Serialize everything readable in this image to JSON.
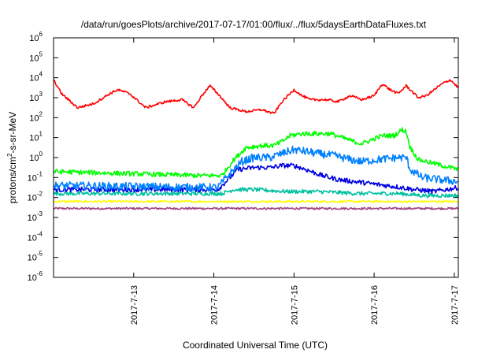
{
  "chart_data": {
    "type": "line",
    "title": "/data/run/goesPlots/archive/2017-07-17/01:00/flux/../flux/5daysEarthDataFluxes.txt",
    "xlabel": "Coordinated Universal Time (UTC)",
    "ylabel": "protons/cm²-s-sr-MeV",
    "ylabel_parts": {
      "pre": "protons/cm",
      "sup": "2",
      "post": "-s-sr-MeV"
    },
    "y_scale": "log",
    "ylim": [
      1e-06,
      1000000.0
    ],
    "xlim": [
      0,
      5.05
    ],
    "y_ticks": [
      {
        "value": -6,
        "base": "10",
        "exp": "-6"
      },
      {
        "value": -5,
        "base": "10",
        "exp": "-5"
      },
      {
        "value": -4,
        "base": "10",
        "exp": "-4"
      },
      {
        "value": -3,
        "base": "10",
        "exp": "-3"
      },
      {
        "value": -2,
        "base": "10",
        "exp": "-2"
      },
      {
        "value": -1,
        "base": "10",
        "exp": "-1"
      },
      {
        "value": 0,
        "base": "10",
        "exp": "0"
      },
      {
        "value": 1,
        "base": "10",
        "exp": "1"
      },
      {
        "value": 2,
        "base": "10",
        "exp": "2"
      },
      {
        "value": 3,
        "base": "10",
        "exp": "3"
      },
      {
        "value": 4,
        "base": "10",
        "exp": "4"
      },
      {
        "value": 5,
        "base": "10",
        "exp": "5"
      },
      {
        "value": 6,
        "base": "10",
        "exp": "6"
      }
    ],
    "x_ticks": [
      {
        "value": 1,
        "label": "2017-7-13"
      },
      {
        "value": 2,
        "label": "2017-7-14"
      },
      {
        "value": 3,
        "label": "2017-7-15"
      },
      {
        "value": 4,
        "label": "2017-7-16"
      },
      {
        "value": 5,
        "label": "2017-7-17"
      }
    ],
    "grid": false,
    "legend": "none",
    "series": [
      {
        "color": "#ff0000",
        "noise": 0.06,
        "points": [
          [
            0,
            3.9
          ],
          [
            0.1,
            3.2
          ],
          [
            0.3,
            2.5
          ],
          [
            0.5,
            2.7
          ],
          [
            0.7,
            3.2
          ],
          [
            0.8,
            3.4
          ],
          [
            0.95,
            3.2
          ],
          [
            1.15,
            2.5
          ],
          [
            1.4,
            2.8
          ],
          [
            1.6,
            2.9
          ],
          [
            1.75,
            2.5
          ],
          [
            1.85,
            3.1
          ],
          [
            1.95,
            3.6
          ],
          [
            2.05,
            3.2
          ],
          [
            2.2,
            2.5
          ],
          [
            2.4,
            2.3
          ],
          [
            2.6,
            2.4
          ],
          [
            2.75,
            2.2
          ],
          [
            2.85,
            2.8
          ],
          [
            3.0,
            3.4
          ],
          [
            3.1,
            3.1
          ],
          [
            3.2,
            2.9
          ],
          [
            3.4,
            2.9
          ],
          [
            3.55,
            2.8
          ],
          [
            3.7,
            3.1
          ],
          [
            3.85,
            2.9
          ],
          [
            4.0,
            3.1
          ],
          [
            4.1,
            3.7
          ],
          [
            4.2,
            3.4
          ],
          [
            4.3,
            3.2
          ],
          [
            4.4,
            3.6
          ],
          [
            4.55,
            3.0
          ],
          [
            4.65,
            3.1
          ],
          [
            4.85,
            3.7
          ],
          [
            4.95,
            3.9
          ],
          [
            5.05,
            3.5
          ]
        ]
      },
      {
        "color": "#00ff00",
        "noise": 0.12,
        "points": [
          [
            0,
            -0.7
          ],
          [
            1.8,
            -0.9
          ],
          [
            2.1,
            -0.9
          ],
          [
            2.25,
            -0.1
          ],
          [
            2.4,
            0.5
          ],
          [
            2.6,
            0.6
          ],
          [
            2.75,
            0.6
          ],
          [
            2.85,
            0.8
          ],
          [
            2.95,
            1.1
          ],
          [
            3.1,
            1.2
          ],
          [
            3.3,
            1.2
          ],
          [
            3.45,
            1.2
          ],
          [
            3.6,
            1.0
          ],
          [
            3.75,
            0.8
          ],
          [
            3.85,
            0.7
          ],
          [
            4.1,
            1.1
          ],
          [
            4.25,
            1.1
          ],
          [
            4.35,
            1.4
          ],
          [
            4.4,
            1.3
          ],
          [
            4.45,
            0.5
          ],
          [
            4.55,
            -0.1
          ],
          [
            4.75,
            -0.3
          ],
          [
            4.95,
            -0.5
          ],
          [
            5.05,
            -0.6
          ]
        ]
      },
      {
        "color": "#0080ff",
        "noise": 0.2,
        "points": [
          [
            0,
            -1.4
          ],
          [
            2.05,
            -1.5
          ],
          [
            2.2,
            -0.8
          ],
          [
            2.35,
            -0.2
          ],
          [
            2.5,
            0.0
          ],
          [
            2.7,
            0.0
          ],
          [
            2.85,
            0.2
          ],
          [
            3.0,
            0.4
          ],
          [
            3.15,
            0.3
          ],
          [
            3.3,
            0.2
          ],
          [
            3.5,
            0.1
          ],
          [
            3.7,
            -0.1
          ],
          [
            3.85,
            -0.2
          ],
          [
            4.05,
            -0.1
          ],
          [
            4.3,
            0.0
          ],
          [
            4.4,
            0.0
          ],
          [
            4.45,
            -0.6
          ],
          [
            4.6,
            -1.0
          ],
          [
            4.8,
            -1.1
          ],
          [
            5.05,
            -1.2
          ]
        ]
      },
      {
        "color": "#0000e0",
        "noise": 0.12,
        "points": [
          [
            0,
            -1.6
          ],
          [
            2.05,
            -1.6
          ],
          [
            2.15,
            -1.2
          ],
          [
            2.3,
            -0.6
          ],
          [
            2.5,
            -0.5
          ],
          [
            2.7,
            -0.5
          ],
          [
            2.85,
            -0.4
          ],
          [
            3.0,
            -0.4
          ],
          [
            3.15,
            -0.6
          ],
          [
            3.35,
            -0.9
          ],
          [
            3.55,
            -1.1
          ],
          [
            3.75,
            -1.2
          ],
          [
            3.95,
            -1.3
          ],
          [
            4.15,
            -1.4
          ],
          [
            4.35,
            -1.5
          ],
          [
            4.5,
            -1.6
          ],
          [
            4.75,
            -1.7
          ],
          [
            5.05,
            -1.5
          ]
        ]
      },
      {
        "color": "#00c0a0",
        "noise": 0.1,
        "points": [
          [
            0,
            -1.8
          ],
          [
            2.1,
            -1.8
          ],
          [
            2.25,
            -1.6
          ],
          [
            2.5,
            -1.6
          ],
          [
            2.9,
            -1.7
          ],
          [
            3.3,
            -1.7
          ],
          [
            3.8,
            -1.8
          ],
          [
            4.3,
            -1.8
          ],
          [
            4.6,
            -1.9
          ],
          [
            5.05,
            -1.9
          ]
        ]
      },
      {
        "color": "#ffff00",
        "noise": 0.05,
        "points": [
          [
            0,
            -2.2
          ],
          [
            5.05,
            -2.2
          ]
        ]
      },
      {
        "color": "#a04080",
        "noise": 0.05,
        "points": [
          [
            0,
            -2.55
          ],
          [
            5.05,
            -2.55
          ]
        ]
      }
    ]
  }
}
